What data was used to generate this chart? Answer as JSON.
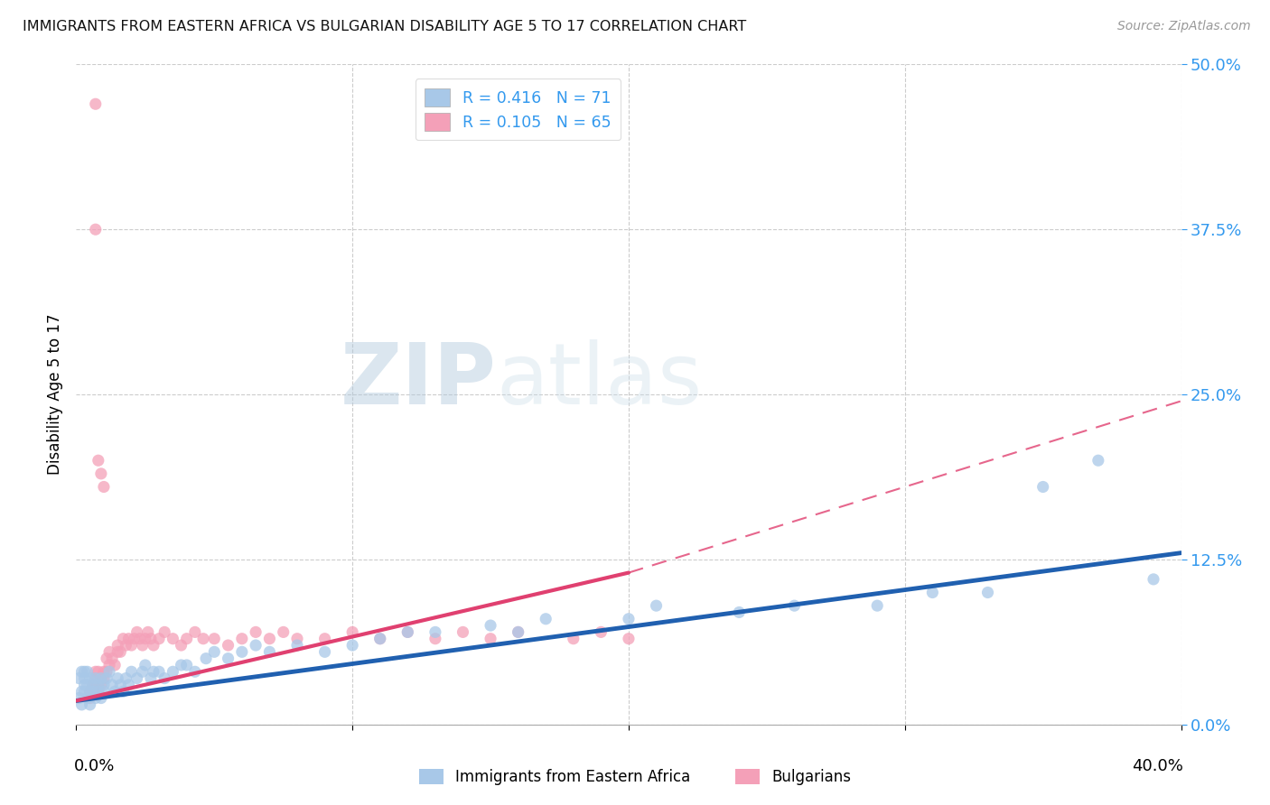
{
  "title": "IMMIGRANTS FROM EASTERN AFRICA VS BULGARIAN DISABILITY AGE 5 TO 17 CORRELATION CHART",
  "source": "Source: ZipAtlas.com",
  "ylabel": "Disability Age 5 to 17",
  "ytick_labels": [
    "0.0%",
    "12.5%",
    "25.0%",
    "37.5%",
    "50.0%"
  ],
  "ytick_vals": [
    0.0,
    0.125,
    0.25,
    0.375,
    0.5
  ],
  "xtick_labels": [
    "0.0%",
    "40.0%"
  ],
  "xlim": [
    0.0,
    0.4
  ],
  "ylim": [
    0.0,
    0.5
  ],
  "watermark": "ZIPatlas",
  "blue_color": "#a8c8e8",
  "pink_color": "#f4a0b8",
  "blue_line_color": "#2060b0",
  "pink_line_color": "#e04070",
  "grid_color": "#cccccc",
  "blue_scatter_x": [
    0.001,
    0.001,
    0.002,
    0.002,
    0.002,
    0.003,
    0.003,
    0.003,
    0.003,
    0.004,
    0.004,
    0.004,
    0.005,
    0.005,
    0.005,
    0.006,
    0.006,
    0.007,
    0.007,
    0.008,
    0.008,
    0.009,
    0.009,
    0.01,
    0.01,
    0.011,
    0.012,
    0.013,
    0.014,
    0.015,
    0.016,
    0.017,
    0.018,
    0.019,
    0.02,
    0.022,
    0.024,
    0.025,
    0.027,
    0.028,
    0.03,
    0.032,
    0.035,
    0.038,
    0.04,
    0.043,
    0.047,
    0.05,
    0.055,
    0.06,
    0.065,
    0.07,
    0.08,
    0.09,
    0.1,
    0.11,
    0.12,
    0.13,
    0.15,
    0.16,
    0.17,
    0.2,
    0.21,
    0.24,
    0.26,
    0.29,
    0.31,
    0.33,
    0.35,
    0.37,
    0.39
  ],
  "blue_scatter_y": [
    0.02,
    0.035,
    0.025,
    0.04,
    0.015,
    0.03,
    0.04,
    0.025,
    0.035,
    0.02,
    0.03,
    0.04,
    0.025,
    0.035,
    0.015,
    0.03,
    0.025,
    0.035,
    0.02,
    0.03,
    0.025,
    0.035,
    0.02,
    0.03,
    0.025,
    0.035,
    0.04,
    0.03,
    0.025,
    0.035,
    0.03,
    0.025,
    0.035,
    0.03,
    0.04,
    0.035,
    0.04,
    0.045,
    0.035,
    0.04,
    0.04,
    0.035,
    0.04,
    0.045,
    0.045,
    0.04,
    0.05,
    0.055,
    0.05,
    0.055,
    0.06,
    0.055,
    0.06,
    0.055,
    0.06,
    0.065,
    0.07,
    0.07,
    0.075,
    0.07,
    0.08,
    0.08,
    0.09,
    0.085,
    0.09,
    0.09,
    0.1,
    0.1,
    0.18,
    0.2,
    0.11
  ],
  "pink_scatter_x": [
    0.005,
    0.005,
    0.006,
    0.006,
    0.007,
    0.007,
    0.007,
    0.008,
    0.008,
    0.008,
    0.009,
    0.009,
    0.01,
    0.01,
    0.011,
    0.011,
    0.012,
    0.012,
    0.013,
    0.014,
    0.015,
    0.015,
    0.016,
    0.017,
    0.018,
    0.019,
    0.02,
    0.021,
    0.022,
    0.023,
    0.024,
    0.025,
    0.026,
    0.027,
    0.028,
    0.03,
    0.032,
    0.035,
    0.038,
    0.04,
    0.043,
    0.046,
    0.05,
    0.055,
    0.06,
    0.065,
    0.07,
    0.075,
    0.08,
    0.09,
    0.1,
    0.11,
    0.12,
    0.13,
    0.14,
    0.15,
    0.16,
    0.18,
    0.19,
    0.2,
    0.007,
    0.007,
    0.008,
    0.009,
    0.01
  ],
  "pink_scatter_y": [
    0.025,
    0.02,
    0.03,
    0.025,
    0.03,
    0.04,
    0.035,
    0.025,
    0.04,
    0.03,
    0.035,
    0.03,
    0.04,
    0.035,
    0.04,
    0.05,
    0.045,
    0.055,
    0.05,
    0.045,
    0.055,
    0.06,
    0.055,
    0.065,
    0.06,
    0.065,
    0.06,
    0.065,
    0.07,
    0.065,
    0.06,
    0.065,
    0.07,
    0.065,
    0.06,
    0.065,
    0.07,
    0.065,
    0.06,
    0.065,
    0.07,
    0.065,
    0.065,
    0.06,
    0.065,
    0.07,
    0.065,
    0.07,
    0.065,
    0.065,
    0.07,
    0.065,
    0.07,
    0.065,
    0.07,
    0.065,
    0.07,
    0.065,
    0.07,
    0.065,
    0.47,
    0.375,
    0.2,
    0.19,
    0.18
  ],
  "pink_line_x_start": 0.0,
  "pink_line_x_solid_end": 0.2,
  "pink_line_x_end": 0.4,
  "pink_line_y_start": 0.018,
  "pink_line_y_solid_end": 0.115,
  "pink_line_y_end": 0.245,
  "blue_line_x_start": 0.0,
  "blue_line_x_end": 0.4,
  "blue_line_y_start": 0.018,
  "blue_line_y_end": 0.13
}
